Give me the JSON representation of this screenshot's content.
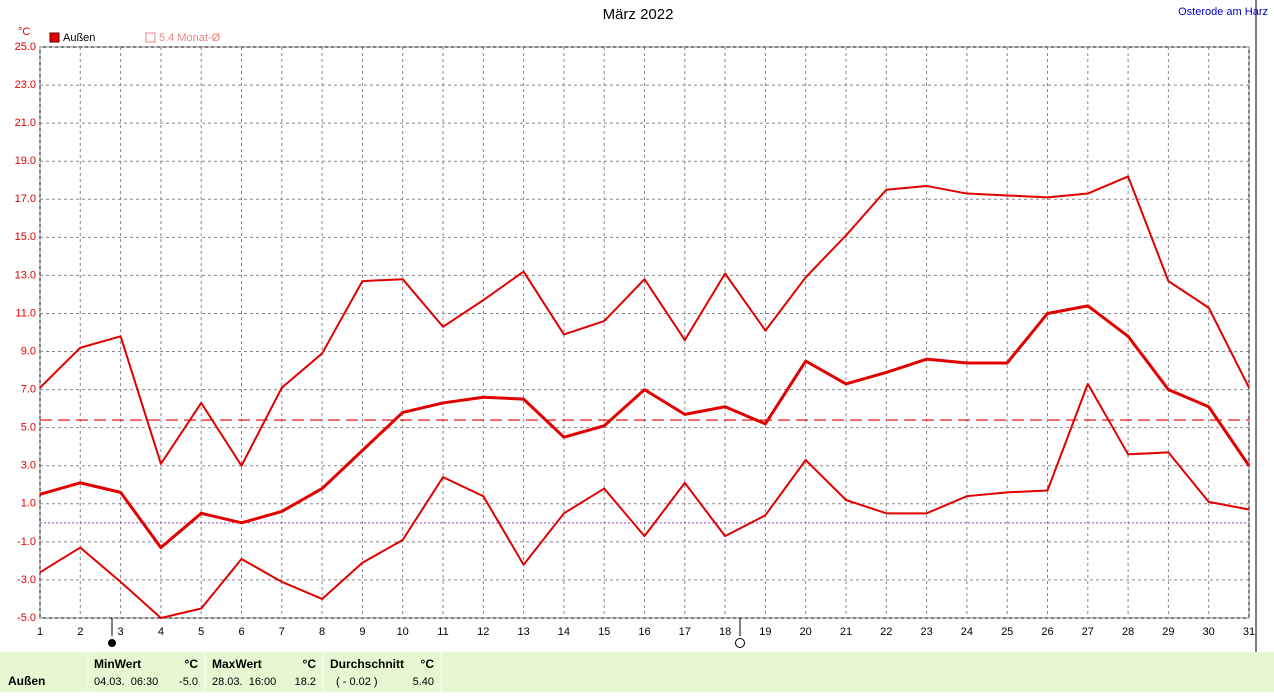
{
  "location": "Osterode am Harz",
  "chart_data": {
    "type": "line",
    "title": "März 2022",
    "y_unit": "°C",
    "x": [
      1,
      2,
      3,
      4,
      5,
      6,
      7,
      8,
      9,
      10,
      11,
      12,
      13,
      14,
      15,
      16,
      17,
      18,
      19,
      20,
      21,
      22,
      23,
      24,
      25,
      26,
      27,
      28,
      29,
      30,
      31
    ],
    "xlim": [
      1,
      31
    ],
    "xticks": [
      1,
      2,
      3,
      4,
      5,
      6,
      7,
      8,
      9,
      10,
      11,
      12,
      13,
      14,
      15,
      16,
      17,
      18,
      19,
      20,
      21,
      22,
      23,
      24,
      25,
      26,
      27,
      28,
      29,
      30,
      31
    ],
    "ylim": [
      -5,
      25
    ],
    "yticks": [
      {
        "value": -5,
        "label": "-5.0"
      },
      {
        "value": -3,
        "label": "-3.0"
      },
      {
        "value": -1,
        "label": "-1.0"
      },
      {
        "value": 1,
        "label": "1.0"
      },
      {
        "value": 3,
        "label": "3.0"
      },
      {
        "value": 5,
        "label": "5.0"
      },
      {
        "value": 7,
        "label": "7.0"
      },
      {
        "value": 9,
        "label": "9.0"
      },
      {
        "value": 11,
        "label": "11.0"
      },
      {
        "value": 13,
        "label": "13.0"
      },
      {
        "value": 15,
        "label": "15.0"
      },
      {
        "value": 17,
        "label": "17.0"
      },
      {
        "value": 19,
        "label": "19.0"
      },
      {
        "value": 21,
        "label": "21.0"
      },
      {
        "value": 23,
        "label": "23.0"
      },
      {
        "value": 25,
        "label": "25.0"
      }
    ],
    "grid": true,
    "series": [
      {
        "name": "Außen",
        "color": "#e00000",
        "width": 3,
        "values": [
          1.5,
          2.1,
          1.6,
          -1.3,
          0.5,
          0.0,
          0.6,
          1.8,
          3.8,
          5.8,
          6.3,
          6.6,
          6.5,
          4.5,
          5.1,
          7.0,
          5.7,
          6.1,
          5.2,
          8.5,
          7.3,
          7.9,
          8.6,
          8.4,
          8.4,
          11.0,
          11.4,
          9.8,
          7.0,
          6.1,
          3.0
        ]
      },
      {
        "color": "#e00000",
        "width": 2,
        "values": [
          7.1,
          9.2,
          9.8,
          3.1,
          6.3,
          3.0,
          7.1,
          8.9,
          12.7,
          12.8,
          10.3,
          11.7,
          13.2,
          9.9,
          10.6,
          12.8,
          9.6,
          13.1,
          10.1,
          12.9,
          15.1,
          17.5,
          17.7,
          17.3,
          17.2,
          17.1,
          17.3,
          18.2,
          12.7,
          11.3,
          7.1
        ]
      },
      {
        "color": "#e00000",
        "width": 2,
        "values": [
          -2.6,
          -1.3,
          -3.1,
          -5.0,
          -4.5,
          -1.9,
          -3.1,
          -4.0,
          -2.1,
          -0.9,
          2.4,
          1.4,
          -2.2,
          0.5,
          1.8,
          -0.7,
          2.1,
          -0.7,
          0.4,
          3.3,
          1.2,
          0.5,
          0.5,
          1.4,
          1.6,
          1.7,
          7.3,
          3.6,
          3.7,
          1.1,
          0.7
        ]
      }
    ],
    "average_line": {
      "value": 5.4,
      "label": "5.4 Monat-Ø",
      "color": "#e00000"
    },
    "zero_line": {
      "value": 0,
      "color": "#a040c0"
    }
  },
  "stats": {
    "row_label": "Außen",
    "min": {
      "title": "MinWert",
      "unit": "°C",
      "when": "04.03.  06:30",
      "value": "-5.0"
    },
    "max": {
      "title": "MaxWert",
      "unit": "°C",
      "when": "28.03.  16:00",
      "value": "18.2"
    },
    "avg": {
      "title": "Durchschnitt",
      "unit": "°C",
      "when": "( - 0.02 )",
      "value": "5.40"
    }
  }
}
